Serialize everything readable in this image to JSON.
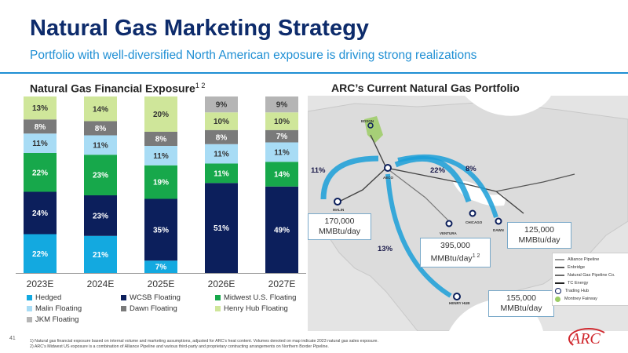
{
  "header": {
    "title": "Natural Gas Marketing Strategy",
    "subtitle": "Portfolio with well-diversified North American exposure is driving strong realizations"
  },
  "chart_title_text": "Natural Gas Financial Exposure",
  "chart_title_sup": "1 2",
  "map_title": "ARC’s Current Natural Gas Portfolio",
  "chart_data": {
    "type": "bar",
    "stacked": true,
    "title": "Natural Gas Financial Exposure",
    "categories": [
      "2023E",
      "2024E",
      "2025E",
      "2026E",
      "2027E"
    ],
    "ylim": [
      0,
      100
    ],
    "grid": false,
    "legend_position": "bottom",
    "series": [
      {
        "name": "Hedged",
        "color": "#13a9e0",
        "values": [
          22,
          21,
          7,
          0,
          0
        ],
        "labels": [
          "22%",
          "21%",
          "7%",
          "",
          ""
        ]
      },
      {
        "name": "WCSB Floating",
        "color": "#0c1f5c",
        "values": [
          24,
          23,
          35,
          51,
          49
        ],
        "labels": [
          "24%",
          "23%",
          "35%",
          "51%",
          "49%"
        ]
      },
      {
        "name": "Midwest U.S. Floating",
        "color": "#17a84b",
        "values": [
          22,
          23,
          19,
          11,
          14
        ],
        "labels": [
          "22%",
          "23%",
          "19%",
          "11%",
          "14%"
        ]
      },
      {
        "name": "Malin Floating",
        "color": "#a8dcf5",
        "values": [
          11,
          11,
          11,
          11,
          11
        ],
        "labels": [
          "11%",
          "11%",
          "11%",
          "11%",
          "11%"
        ]
      },
      {
        "name": "Dawn Floating",
        "color": "#7a7a7a",
        "values": [
          8,
          8,
          8,
          8,
          7
        ],
        "labels": [
          "8%",
          "8%",
          "8%",
          "8%",
          "7%"
        ]
      },
      {
        "name": "Henry Hub Floating",
        "color": "#cfe69a",
        "values": [
          13,
          14,
          20,
          10,
          10
        ],
        "labels": [
          "13%",
          "14%",
          "20%",
          "10%",
          "10%"
        ]
      },
      {
        "name": "JKM Floating",
        "color": "#b5b5b5",
        "values": [
          0,
          0,
          0,
          9,
          9
        ],
        "labels": [
          "",
          "",
          "",
          "9%",
          "9%"
        ]
      }
    ]
  },
  "map": {
    "callouts": [
      {
        "line1": "170,000",
        "line2": "MMBtu/day",
        "sup": ""
      },
      {
        "line1": "395,000",
        "line2": "MMBtu/day",
        "sup": "1 2"
      },
      {
        "line1": "125,000",
        "line2": "MMBtu/day",
        "sup": ""
      },
      {
        "line1": "155,000",
        "line2": "MMBtu/day",
        "sup": ""
      }
    ],
    "percents": [
      "11%",
      "22%",
      "8%",
      "13%"
    ],
    "places": [
      "EDSON",
      "AECO",
      "MALIN",
      "VENTURA",
      "CHICAGO",
      "DAWN",
      "HENRY HUB"
    ],
    "legend": [
      {
        "label": "Alliance Pipeline",
        "color": "#9a9a9a"
      },
      {
        "label": "Enbridge",
        "color": "#555555"
      },
      {
        "label": "Natural Gas Pipeline Co.",
        "color": "#6a6a6a"
      },
      {
        "label": "TC Energy",
        "color": "#222222"
      },
      {
        "label": "Trading Hub",
        "color": "#0c1f5c"
      },
      {
        "label": "Montney Fairway",
        "color": "#9ccc65"
      }
    ],
    "colors": {
      "arrow": "#1a9fd8",
      "land": "#e4e4e4",
      "water": "#ffffff"
    }
  },
  "footer": {
    "page": "41",
    "note1": "1)  Natural gas financial exposure based on internal volume and marketing assumptions, adjusted for ARC’s heat content. Volumes denoted on map indicate 2023 natural gas sales exposure.",
    "note2": "2)  ARC’s Midwest US exposure is a combination of Alliance Pipeline and various third-party and proprietary contracting arrangements on Northern Border Pipeline.",
    "logo": "ARC"
  }
}
